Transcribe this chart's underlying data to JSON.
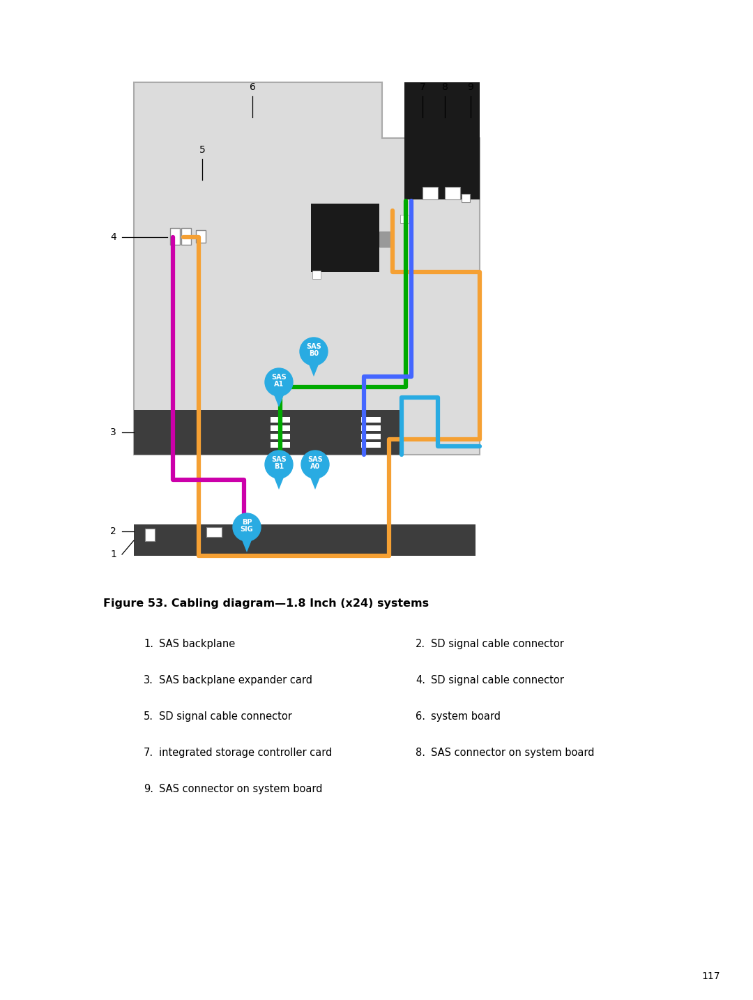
{
  "title": "Figure 53. Cabling diagram—1.8 Inch (x24) systems",
  "page_number": "117",
  "background_color": "#ffffff",
  "legend_items": [
    {
      "num": "1.",
      "text": "SAS backplane"
    },
    {
      "num": "2.",
      "text": "SD signal cable connector"
    },
    {
      "num": "3.",
      "text": "SAS backplane expander card"
    },
    {
      "num": "4.",
      "text": "SD signal cable connector"
    },
    {
      "num": "5.",
      "text": "SD signal cable connector"
    },
    {
      "num": "6.",
      "text": "system board"
    },
    {
      "num": "7.",
      "text": "integrated storage controller card"
    },
    {
      "num": "8.",
      "text": "SAS connector on system board"
    },
    {
      "num": "9.",
      "text": "SAS connector on system board"
    }
  ],
  "colors": {
    "orange": "#F5A033",
    "magenta": "#CC00AA",
    "green": "#00AA00",
    "blue": "#4466FF",
    "cyan_badge": "#29ABE2",
    "dark_gray": "#3D3D3D",
    "light_gray": "#DCDCDC",
    "medium_gray": "#AAAAAA",
    "black": "#1A1A1A",
    "white": "#FFFFFF"
  }
}
